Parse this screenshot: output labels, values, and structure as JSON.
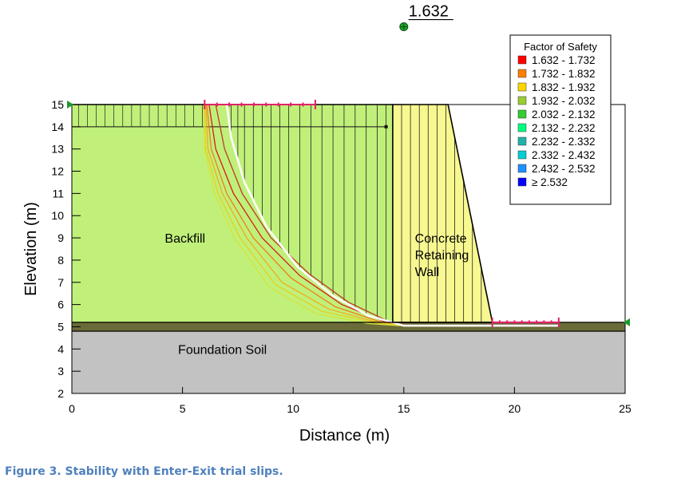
{
  "chart_data": {
    "type": "slope-stability-section",
    "xlabel": "Distance (m)",
    "ylabel": "Elevation (m)",
    "xlim": [
      0,
      25
    ],
    "ylim": [
      2,
      15
    ],
    "x_ticks": [
      0,
      5,
      10,
      15,
      20,
      25
    ],
    "y_ticks": [
      2,
      3,
      4,
      5,
      6,
      7,
      8,
      9,
      10,
      11,
      12,
      13,
      14,
      15
    ],
    "critical_fos": "1.632",
    "critical_center": [
      15,
      18.5
    ],
    "regions": [
      {
        "name": "Backfill",
        "color": "#c0f07a",
        "polygon": [
          [
            0,
            5.2
          ],
          [
            0,
            15
          ],
          [
            14.5,
            15
          ],
          [
            14.5,
            5.2
          ]
        ]
      },
      {
        "name": "Concrete Retaining Wall",
        "color": "#f8f890",
        "polygon": [
          [
            14.5,
            5.2
          ],
          [
            14.5,
            15
          ],
          [
            17,
            15
          ],
          [
            19,
            5.2
          ]
        ]
      },
      {
        "name": "Foundation Soil",
        "color": "#c2c2c2",
        "polygon": [
          [
            0,
            2
          ],
          [
            0,
            4.8
          ],
          [
            25,
            4.8
          ],
          [
            25,
            2
          ]
        ]
      },
      {
        "name": "",
        "color": "#6b6b3a",
        "polygon": [
          [
            0,
            4.8
          ],
          [
            0,
            5.2
          ],
          [
            25,
            5.2
          ],
          [
            25,
            4.8
          ]
        ]
      }
    ],
    "region_labels": [
      {
        "lines": [
          "Backfill"
        ],
        "at": [
          4.2,
          9
        ]
      },
      {
        "lines": [
          "Concrete",
          "Retaining",
          "Wall"
        ],
        "at": [
          15.5,
          9
        ]
      },
      {
        "lines": [
          "Foundation Soil"
        ],
        "at": [
          4.8,
          4
        ]
      }
    ],
    "water_level": {
      "y": 14,
      "from": 0,
      "to": 14.2
    },
    "entry_range": [
      6,
      11
    ],
    "exit_range": [
      19,
      22
    ],
    "critical_slip": [
      [
        7,
        15
      ],
      [
        7.2,
        13.5
      ],
      [
        7.8,
        11.5
      ],
      [
        8.8,
        9.5
      ],
      [
        10.2,
        7.7
      ],
      [
        11.8,
        6.4
      ],
      [
        13.4,
        5.5
      ],
      [
        15,
        5.05
      ],
      [
        22,
        5.05
      ]
    ],
    "trial_slips": [
      {
        "color": "#d81a1a",
        "points": [
          [
            6.2,
            15
          ],
          [
            6.5,
            13
          ],
          [
            7.3,
            11
          ],
          [
            8.6,
            9
          ],
          [
            10.3,
            7.3
          ],
          [
            12.2,
            6
          ],
          [
            14.2,
            5.2
          ],
          [
            15.2,
            5.05
          ]
        ]
      },
      {
        "color": "#ef7e1c",
        "points": [
          [
            6.1,
            15
          ],
          [
            6.3,
            13
          ],
          [
            7,
            11
          ],
          [
            8.2,
            9
          ],
          [
            9.9,
            7.2
          ],
          [
            11.9,
            5.9
          ],
          [
            14,
            5.2
          ],
          [
            15.1,
            5.05
          ]
        ]
      },
      {
        "color": "#f2ac1a",
        "points": [
          [
            6.05,
            15
          ],
          [
            6.15,
            13
          ],
          [
            6.8,
            11
          ],
          [
            7.9,
            9
          ],
          [
            9.5,
            7
          ],
          [
            11.6,
            5.8
          ],
          [
            13.8,
            5.2
          ],
          [
            15,
            5.05
          ]
        ]
      },
      {
        "color": "#e5d21c",
        "points": [
          [
            6,
            15
          ],
          [
            6.05,
            13
          ],
          [
            6.6,
            11
          ],
          [
            7.6,
            9
          ],
          [
            9.2,
            6.9
          ],
          [
            11.3,
            5.7
          ],
          [
            13.6,
            5.2
          ],
          [
            14.9,
            5.05
          ]
        ]
      },
      {
        "color": "#d6e33a",
        "points": [
          [
            5.95,
            15
          ],
          [
            6,
            13
          ],
          [
            6.45,
            11
          ],
          [
            7.35,
            9
          ],
          [
            8.9,
            6.8
          ],
          [
            11,
            5.6
          ],
          [
            13.4,
            5.15
          ],
          [
            14.8,
            5.05
          ]
        ]
      },
      {
        "color": "#c0392b",
        "points": [
          [
            6.5,
            15
          ],
          [
            6.9,
            13
          ],
          [
            7.7,
            11
          ],
          [
            9,
            9
          ],
          [
            10.7,
            7.4
          ],
          [
            12.5,
            6.1
          ],
          [
            14.4,
            5.2
          ],
          [
            15.3,
            5.05
          ]
        ]
      }
    ],
    "legend": {
      "title": "Factor of Safety",
      "position": "top-right",
      "items": [
        {
          "label": "1.632 - 1.732",
          "color": "#ff0000"
        },
        {
          "label": "1.732 - 1.832",
          "color": "#ff7f00"
        },
        {
          "label": "1.832 - 1.932",
          "color": "#ffd700"
        },
        {
          "label": "1.932 - 2.032",
          "color": "#9acd32"
        },
        {
          "label": "2.032 - 2.132",
          "color": "#32cd32"
        },
        {
          "label": "2.132 - 2.232",
          "color": "#00ff7f"
        },
        {
          "label": "2.232 - 2.332",
          "color": "#20b2aa"
        },
        {
          "label": "2.332 - 2.432",
          "color": "#00ced1"
        },
        {
          "label": "2.432 - 2.532",
          "color": "#1e90ff"
        },
        {
          "label": "≥ 2.532",
          "color": "#0000ff"
        }
      ]
    }
  },
  "caption": "Figure 3.  Stability with Enter-Exit trial slips."
}
